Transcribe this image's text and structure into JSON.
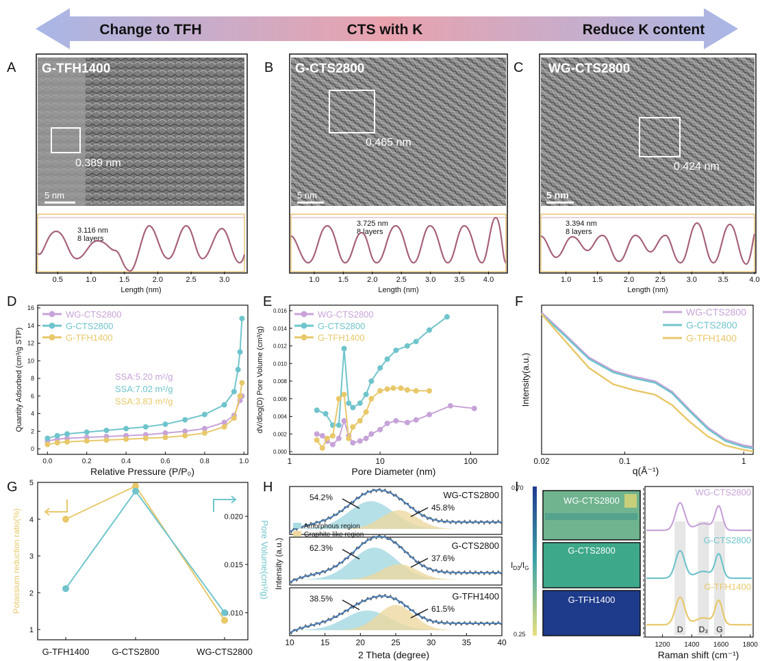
{
  "banner": {
    "left": "Change to TFH",
    "center": "CTS with K",
    "right": "Reduce K content",
    "colors": {
      "left": "#a9b7e6",
      "center": "#e9a2ad",
      "right": "#a9b7e6"
    }
  },
  "panel_letters": {
    "A": "A",
    "B": "B",
    "C": "C",
    "D": "D",
    "E": "E",
    "F": "F",
    "G": "G",
    "H": "H",
    "I": "I"
  },
  "tem": [
    {
      "letter": "A",
      "label": "G-TFH1400",
      "spacing": "0.389 nm",
      "scale": "5  nm",
      "profile_text1": "3.116 nm",
      "profile_text2": "8 layers",
      "x_label": "Length (nm)",
      "x_ticks": [
        "0.5",
        "1.0",
        "1.5",
        "2.0",
        "2.5",
        "3.0"
      ],
      "x_range": [
        0.2,
        3.3
      ]
    },
    {
      "letter": "B",
      "label": "G-CTS2800",
      "spacing": "0.465 nm",
      "scale": "5 nm",
      "profile_text1": "3.725 nm",
      "profile_text2": "8 layers",
      "x_label": "Length (nm)",
      "x_ticks": [
        "1.0",
        "1.5",
        "2.0",
        "2.5",
        "3.0",
        "3.5",
        "4.0"
      ],
      "x_range": [
        0.6,
        4.3
      ]
    },
    {
      "letter": "C",
      "label": "WG-CTS2800",
      "spacing": "0.424 nm",
      "scale": "5 nm",
      "profile_text1": "3.394 nm",
      "profile_text2": "8 layers",
      "x_label": "Length (nm)",
      "x_ticks": [
        "1.0",
        "1.5",
        "2.0",
        "2.5",
        "3.0",
        "3.5",
        "4.0"
      ],
      "x_range": [
        0.6,
        4.0
      ]
    }
  ],
  "colors": {
    "purple": "#c7a3d9",
    "teal": "#6fc4cc",
    "yellow": "#e8c86a",
    "profile": "#a6607a",
    "navy": "#1e3a8a"
  },
  "chart_data": [
    {
      "type": "line",
      "panel": "D",
      "xlabel": "Relative Pressure (P/P₀)",
      "ylabel": "Quantity Adsorbed (cm³/g STP)",
      "xlim": [
        -0.05,
        1.02
      ],
      "ylim": [
        0,
        16
      ],
      "x_ticks": [
        "0.0",
        "0.2",
        "0.4",
        "0.6",
        "0.8",
        "1.0"
      ],
      "y_ticks": [
        "0",
        "2",
        "4",
        "6",
        "8",
        "10",
        "12",
        "14",
        "16"
      ],
      "legend": [
        "WG-CTS2800",
        "G-CTS2800",
        "G-TFH1400"
      ],
      "annotations": [
        "SSA:5.20 m²/g",
        "SSA:7.02 m²/g",
        "SSA:3.83 m²/g"
      ],
      "series": [
        {
          "name": "WG-CTS2800",
          "x": [
            0.0,
            0.05,
            0.1,
            0.2,
            0.3,
            0.4,
            0.5,
            0.6,
            0.7,
            0.8,
            0.9,
            0.95,
            0.98,
            0.99
          ],
          "y": [
            0.9,
            1.1,
            1.2,
            1.3,
            1.4,
            1.5,
            1.6,
            1.8,
            2.0,
            2.3,
            3.0,
            3.8,
            5.5,
            6.0
          ]
        },
        {
          "name": "G-CTS2800",
          "x": [
            0.0,
            0.05,
            0.1,
            0.2,
            0.3,
            0.4,
            0.5,
            0.6,
            0.7,
            0.8,
            0.9,
            0.95,
            0.97,
            0.98,
            0.99
          ],
          "y": [
            1.2,
            1.5,
            1.7,
            1.9,
            2.1,
            2.3,
            2.5,
            2.8,
            3.3,
            3.9,
            5.0,
            6.5,
            9.0,
            11.0,
            14.8
          ]
        },
        {
          "name": "G-TFH1400",
          "x": [
            0.0,
            0.05,
            0.1,
            0.2,
            0.3,
            0.4,
            0.5,
            0.6,
            0.7,
            0.8,
            0.9,
            0.95,
            0.98,
            0.99
          ],
          "y": [
            0.5,
            0.7,
            0.8,
            0.9,
            1.0,
            1.1,
            1.2,
            1.3,
            1.5,
            1.8,
            2.5,
            3.5,
            6.0,
            7.5
          ]
        }
      ]
    },
    {
      "type": "line",
      "panel": "E",
      "xlabel": "Pore Diameter (nm)",
      "ylabel": "dV/dlog(D) Pore Volume (cm³/g)",
      "xscale": "log",
      "xlim": [
        1,
        200
      ],
      "ylim": [
        0,
        0.016
      ],
      "x_ticks": [
        "1",
        "10",
        "100"
      ],
      "y_ticks": [
        "0.000",
        "0.002",
        "0.004",
        "0.006",
        "0.008",
        "0.010",
        "0.012",
        "0.014",
        "0.016"
      ],
      "legend": [
        "WG-CTS2800",
        "G-CTS2800",
        "G-TFH1400"
      ],
      "series": [
        {
          "name": "WG-CTS2800",
          "x": [
            2.0,
            2.3,
            2.6,
            3.0,
            3.5,
            4.0,
            4.5,
            5.0,
            6.0,
            7.0,
            8.0,
            10.0,
            12.0,
            15.0,
            20.0,
            25.0,
            35.0,
            60.0,
            110.0
          ],
          "y": [
            0.002,
            0.0018,
            0.0012,
            0.0008,
            0.0015,
            0.0035,
            0.0018,
            0.001,
            0.0012,
            0.0015,
            0.002,
            0.0025,
            0.0032,
            0.0035,
            0.0033,
            0.0036,
            0.0042,
            0.0052,
            0.0049
          ]
        },
        {
          "name": "G-CTS2800",
          "x": [
            2.0,
            2.5,
            3.0,
            3.5,
            4.0,
            4.5,
            5.0,
            6.0,
            7.0,
            8.0,
            10.0,
            12.0,
            15.0,
            20.0,
            25.0,
            35.0,
            55.0
          ],
          "y": [
            0.0047,
            0.0043,
            0.003,
            0.003,
            0.0117,
            0.0055,
            0.005,
            0.0055,
            0.0065,
            0.008,
            0.0095,
            0.0105,
            0.0115,
            0.012,
            0.0125,
            0.0138,
            0.0153
          ]
        },
        {
          "name": "G-TFH1400",
          "x": [
            2.0,
            2.3,
            2.6,
            3.0,
            3.5,
            4.0,
            4.5,
            5.0,
            6.0,
            7.0,
            8.0,
            10.0,
            12.0,
            14.0,
            17.0,
            20.0,
            25.0,
            35.0
          ],
          "y": [
            0.0013,
            0.0004,
            0.0015,
            0.0018,
            0.006,
            0.0065,
            0.0015,
            0.0028,
            0.0035,
            0.0045,
            0.006,
            0.0069,
            0.0071,
            0.0072,
            0.0072,
            0.007,
            0.0069,
            0.0069
          ]
        }
      ]
    },
    {
      "type": "line",
      "panel": "F",
      "xlabel": "q(Å⁻¹)",
      "ylabel": "Intensity(a.u.)",
      "xscale": "log",
      "xlim": [
        0.02,
        1.2
      ],
      "ylim": [
        0,
        1
      ],
      "x_ticks": [
        "0.02",
        "0.1",
        "1"
      ],
      "legend": [
        "WG-CTS2800",
        "G-CTS2800",
        "G-TFH1400"
      ],
      "series": [
        {
          "name": "WG-CTS2800",
          "x": [
            0.02,
            0.03,
            0.05,
            0.08,
            0.12,
            0.18,
            0.25,
            0.35,
            0.5,
            0.7,
            1.0,
            1.2
          ],
          "y": [
            0.95,
            0.82,
            0.65,
            0.56,
            0.52,
            0.49,
            0.42,
            0.3,
            0.18,
            0.1,
            0.06,
            0.05
          ]
        },
        {
          "name": "G-CTS2800",
          "x": [
            0.02,
            0.03,
            0.05,
            0.08,
            0.12,
            0.18,
            0.25,
            0.35,
            0.5,
            0.7,
            1.0,
            1.2
          ],
          "y": [
            0.94,
            0.81,
            0.64,
            0.55,
            0.51,
            0.48,
            0.41,
            0.29,
            0.17,
            0.09,
            0.05,
            0.04
          ]
        },
        {
          "name": "G-TFH1400",
          "x": [
            0.02,
            0.03,
            0.05,
            0.08,
            0.12,
            0.18,
            0.25,
            0.35,
            0.5,
            0.7,
            1.0,
            1.2
          ],
          "y": [
            0.94,
            0.78,
            0.58,
            0.47,
            0.43,
            0.4,
            0.33,
            0.22,
            0.12,
            0.06,
            0.03,
            0.02
          ]
        }
      ]
    },
    {
      "type": "line",
      "panel": "G",
      "ylabel": "Potassium reduction ratio(%)",
      "y2label": "Pore Volume(cm³/g)",
      "categories": [
        "G-TFH1400",
        "G-CTS2800",
        "WG-CTS2800"
      ],
      "ylim": [
        1,
        5
      ],
      "y2lim": [
        0.0072,
        0.0235
      ],
      "y_ticks": [
        "1",
        "2",
        "3",
        "4",
        "5"
      ],
      "y2_ticks": [
        "0.010",
        "0.015",
        "0.020"
      ],
      "series": [
        {
          "name": "Potassium reduction ratio",
          "axis": "left",
          "values": [
            4.0,
            4.9,
            1.25
          ]
        },
        {
          "name": "Pore Volume",
          "axis": "right",
          "values": [
            0.0125,
            0.0226,
            0.01
          ]
        }
      ]
    },
    {
      "type": "area",
      "panel": "H",
      "xlabel": "2 Theta (degree)",
      "ylabel": "Intensity (a.u.)",
      "xlim": [
        10,
        40
      ],
      "x_ticks": [
        "10",
        "15",
        "20",
        "25",
        "30",
        "35",
        "40"
      ],
      "legend": [
        "Amorphous region",
        "Graphite-like region"
      ],
      "subplots": [
        {
          "name": "WG-CTS2800",
          "amorphous": "54.2%",
          "graphite": "45.8%",
          "amorphous_center": 21.5,
          "graphite_center": 25.5
        },
        {
          "name": "G-CTS2800",
          "amorphous": "62.3%",
          "graphite": "37.6%",
          "amorphous_center": 22,
          "graphite_center": 25.5
        },
        {
          "name": "G-TFH1400",
          "amorphous": "38.5%",
          "graphite": "61.5%",
          "amorphous_center": 21,
          "graphite_center": 25
        }
      ]
    },
    {
      "type": "heatmap",
      "panel": "I-left",
      "colorbar_label": "I_D3/I_G",
      "colorbar_range": [
        "0.25",
        "0.70"
      ],
      "maps": [
        "WG-CTS2800",
        "G-CTS2800",
        "G-TFH1400"
      ]
    },
    {
      "type": "line",
      "panel": "I-right",
      "xlabel": "Raman shift (cm⁻¹)",
      "xlim": [
        1080,
        1820
      ],
      "x_ticks": [
        "1200",
        "1400",
        "1600",
        "1800"
      ],
      "band_labels": [
        "D",
        "D₃",
        "G"
      ],
      "bands": [
        1320,
        1480,
        1590
      ],
      "series": [
        {
          "name": "WG-CTS2800",
          "d_peak": 1320,
          "g_peak": 1585
        },
        {
          "name": "G-CTS2800",
          "d_peak": 1320,
          "g_peak": 1585
        },
        {
          "name": "G-TFH1400",
          "d_peak": 1320,
          "g_peak": 1585
        }
      ]
    }
  ]
}
